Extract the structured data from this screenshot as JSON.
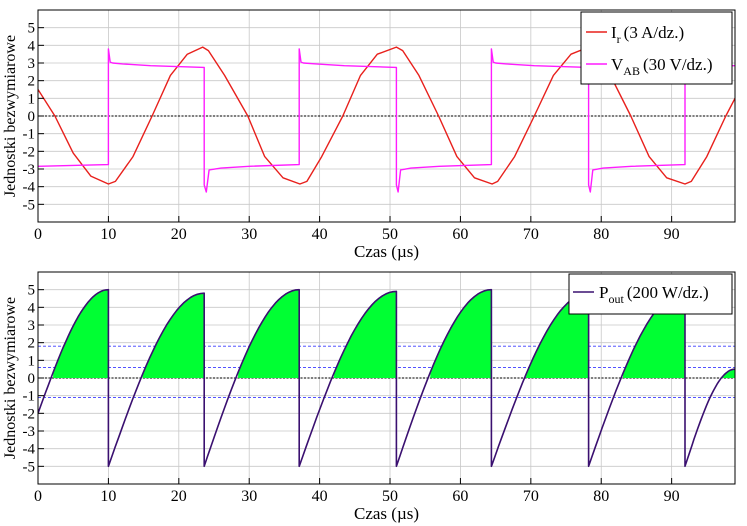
{
  "chart_data": [
    {
      "type": "line",
      "xlabel": "Czas (µs)",
      "ylabel": "Jednostki bezwymiarowe",
      "xlim": [
        0,
        99
      ],
      "ylim": [
        -6,
        6
      ],
      "xticks": [
        0,
        10,
        20,
        30,
        40,
        50,
        60,
        70,
        80,
        90
      ],
      "yticks": [
        -5,
        -4,
        -3,
        -2,
        -1,
        0,
        1,
        2,
        3,
        4,
        5
      ],
      "grid": true,
      "legend_position": "top-right",
      "series": [
        {
          "name": "Ir (3 A/dz.)",
          "legend_main": "I",
          "legend_sub": "r",
          "legend_rest": "(3 A/dz.)",
          "color": "#e8201c",
          "x": [
            0,
            2.4,
            5,
            7.5,
            10,
            11,
            13.5,
            16.2,
            18.8,
            21.2,
            23.4,
            24.2,
            26.5,
            29.8,
            32.2,
            34.8,
            37.2,
            38.2,
            40.3,
            43.3,
            45.8,
            48.2,
            50.9,
            51.8,
            54.1,
            56.9,
            59.5,
            62,
            64.5,
            65.3,
            67.7,
            70.5,
            73.2,
            75.7,
            78.2,
            79.1,
            81.3,
            84.2,
            86.8,
            89.3,
            91.9,
            92.8,
            95,
            97.7,
            99
          ],
          "y": [
            1.5,
            0,
            -2.1,
            -3.4,
            -3.85,
            -3.7,
            -2.3,
            0,
            2.3,
            3.5,
            3.9,
            3.7,
            2.3,
            0,
            -2.3,
            -3.5,
            -3.85,
            -3.7,
            -2.3,
            0,
            2.3,
            3.5,
            3.9,
            3.7,
            2.3,
            0,
            -2.3,
            -3.5,
            -3.85,
            -3.7,
            -2.3,
            0,
            2.3,
            3.5,
            3.9,
            3.7,
            2.3,
            0,
            -2.3,
            -3.5,
            -3.85,
            -3.7,
            -2.3,
            0,
            1.0
          ]
        },
        {
          "name": "VAB (30 V/dz.)",
          "legend_main": "V",
          "legend_sub": "AB",
          "legend_rest": "(30 V/dz.)",
          "color": "#ff1cff",
          "x": [
            0,
            10,
            10,
            10.25,
            10.6,
            12,
            16,
            23.6,
            23.6,
            23.9,
            24.3,
            26,
            30,
            37.1,
            37.1,
            37.35,
            37.7,
            39.5,
            43.5,
            50.9,
            50.9,
            51.15,
            51.5,
            53,
            57,
            64.4,
            64.4,
            64.65,
            65,
            66.5,
            70.5,
            78.2,
            78.2,
            78.45,
            78.8,
            80.3,
            84.3,
            91.9,
            91.9,
            92.15,
            92.5,
            94,
            98,
            99
          ],
          "y": [
            -2.85,
            -2.75,
            3.8,
            3.05,
            3.0,
            2.95,
            2.85,
            2.75,
            -3.9,
            -4.3,
            -3.05,
            -2.95,
            -2.85,
            -2.75,
            3.8,
            3.05,
            3.0,
            2.95,
            2.85,
            2.75,
            -3.9,
            -4.3,
            -3.05,
            -2.95,
            -2.85,
            -2.75,
            3.8,
            3.05,
            3.0,
            2.95,
            2.85,
            2.75,
            -3.9,
            -4.3,
            -3.05,
            -2.95,
            -2.85,
            -2.75,
            3.8,
            3.05,
            3.0,
            2.95,
            2.85,
            2.85
          ]
        }
      ]
    },
    {
      "type": "area",
      "xlabel": "Czas (µs)",
      "ylabel": "Jednostki bezwymiarowe",
      "xlim": [
        0,
        99
      ],
      "ylim": [
        -6,
        6
      ],
      "xticks": [
        0,
        10,
        20,
        30,
        40,
        50,
        60,
        70,
        80,
        90
      ],
      "yticks": [
        -5,
        -4,
        -3,
        -2,
        -1,
        0,
        1,
        2,
        3,
        4,
        5
      ],
      "grid": true,
      "legend_position": "top-right",
      "reference_lines": [
        1.8,
        0.6,
        -1.1
      ],
      "fill_color": "#00ff33",
      "series": [
        {
          "name": "Pout (200 W/dz.)",
          "legend_main": "P",
          "legend_sub": "out",
          "legend_rest": "(200 W/dz.)",
          "color": "#3a1070",
          "segments": [
            {
              "x0": 0,
              "x1": 10,
              "y0": -2.0,
              "y1": 5.0
            },
            {
              "x0": 10,
              "x1": 23.6,
              "y0": -5.0,
              "y1": 4.8
            },
            {
              "x0": 23.6,
              "x1": 37.1,
              "y0": -5.0,
              "y1": 5.0
            },
            {
              "x0": 37.1,
              "x1": 50.9,
              "y0": -5.0,
              "y1": 4.9
            },
            {
              "x0": 50.9,
              "x1": 64.4,
              "y0": -5.0,
              "y1": 5.0
            },
            {
              "x0": 64.4,
              "x1": 78.2,
              "y0": -5.0,
              "y1": 4.8
            },
            {
              "x0": 78.2,
              "x1": 91.9,
              "y0": -5.0,
              "y1": 4.9
            },
            {
              "x0": 91.9,
              "x1": 99,
              "y0": -5.0,
              "y1": 0.5
            }
          ]
        }
      ]
    }
  ]
}
